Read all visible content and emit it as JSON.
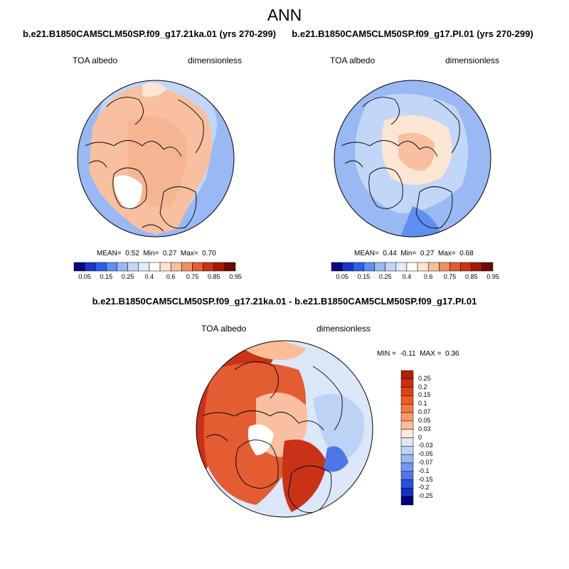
{
  "figure": {
    "title": "ANN"
  },
  "panels": {
    "p1": {
      "title": "b.e21.B1850CAM5CLM50SP.f09_g17.21ka.01 (yrs 270-299)",
      "var_label": "TOA albedo",
      "unit_label": "dimensionless",
      "stats": {
        "mean_label": "MEAN=",
        "mean": "0.52",
        "min_label": "Min=",
        "min": "0.27",
        "max_label": "Max=",
        "max": "0.70"
      }
    },
    "p2": {
      "title": "b.e21.B1850CAM5CLM50SP.f09_g17.PI.01 (yrs 270-299)",
      "var_label": "TOA albedo",
      "unit_label": "dimensionless",
      "stats": {
        "mean_label": "MEAN=",
        "mean": "0.44",
        "min_label": "Min=",
        "min": "0.27",
        "max_label": "Max=",
        "max": "0.68"
      }
    },
    "diff": {
      "title": "b.e21.B1850CAM5CLM50SP.f09_g17.21ka.01 - b.e21.B1850CAM5CLM50SP.f09_g17.PI.01",
      "var_label": "TOA albedo",
      "unit_label": "dimensionless",
      "stats": {
        "min_label": "MIN =",
        "min": "-0.11",
        "max_label": "MAX =",
        "max": "0.36"
      }
    }
  },
  "colorbars": {
    "abs": {
      "labels": [
        "0.05",
        "0.15",
        "0.25",
        "0.4",
        "0.6",
        "0.75",
        "0.85",
        "0.95"
      ],
      "colors": [
        "#08087a",
        "#1a35c8",
        "#2f5fe8",
        "#5f8ff0",
        "#9ab8f4",
        "#c2d6f7",
        "#e2ecf9",
        "#ffffff",
        "#fde5d4",
        "#f8c0a0",
        "#f08e62",
        "#e35c32",
        "#c93217",
        "#a0190a",
        "#6e0805"
      ]
    },
    "diff": {
      "labels": [
        "0.25",
        "0.2",
        "0.15",
        "0.1",
        "0.07",
        "0.05",
        "0.03",
        "0",
        "-0.03",
        "-0.05",
        "-0.07",
        "-0.1",
        "-0.15",
        "-0.2",
        "-0.25"
      ],
      "colors": [
        "#b51e0a",
        "#cc2e10",
        "#dd4218",
        "#ea5b28",
        "#f27a42",
        "#f89b68",
        "#fbbd95",
        "#feeadd",
        "#dce8fa",
        "#bcd3f6",
        "#9ab8f2",
        "#7398ee",
        "#4d76e8",
        "#2850d8",
        "#1330c0",
        "#00007a"
      ]
    }
  },
  "colors": {
    "land_outline": "#000000",
    "ocean_blue": "#9ab8f4",
    "light_blue": "#c2d6f7",
    "light_salmon": "#f8c0a0",
    "pale_peach": "#fde5d4",
    "deep_red": "#c93217",
    "red": "#e35c32",
    "orange": "#f08e62"
  }
}
